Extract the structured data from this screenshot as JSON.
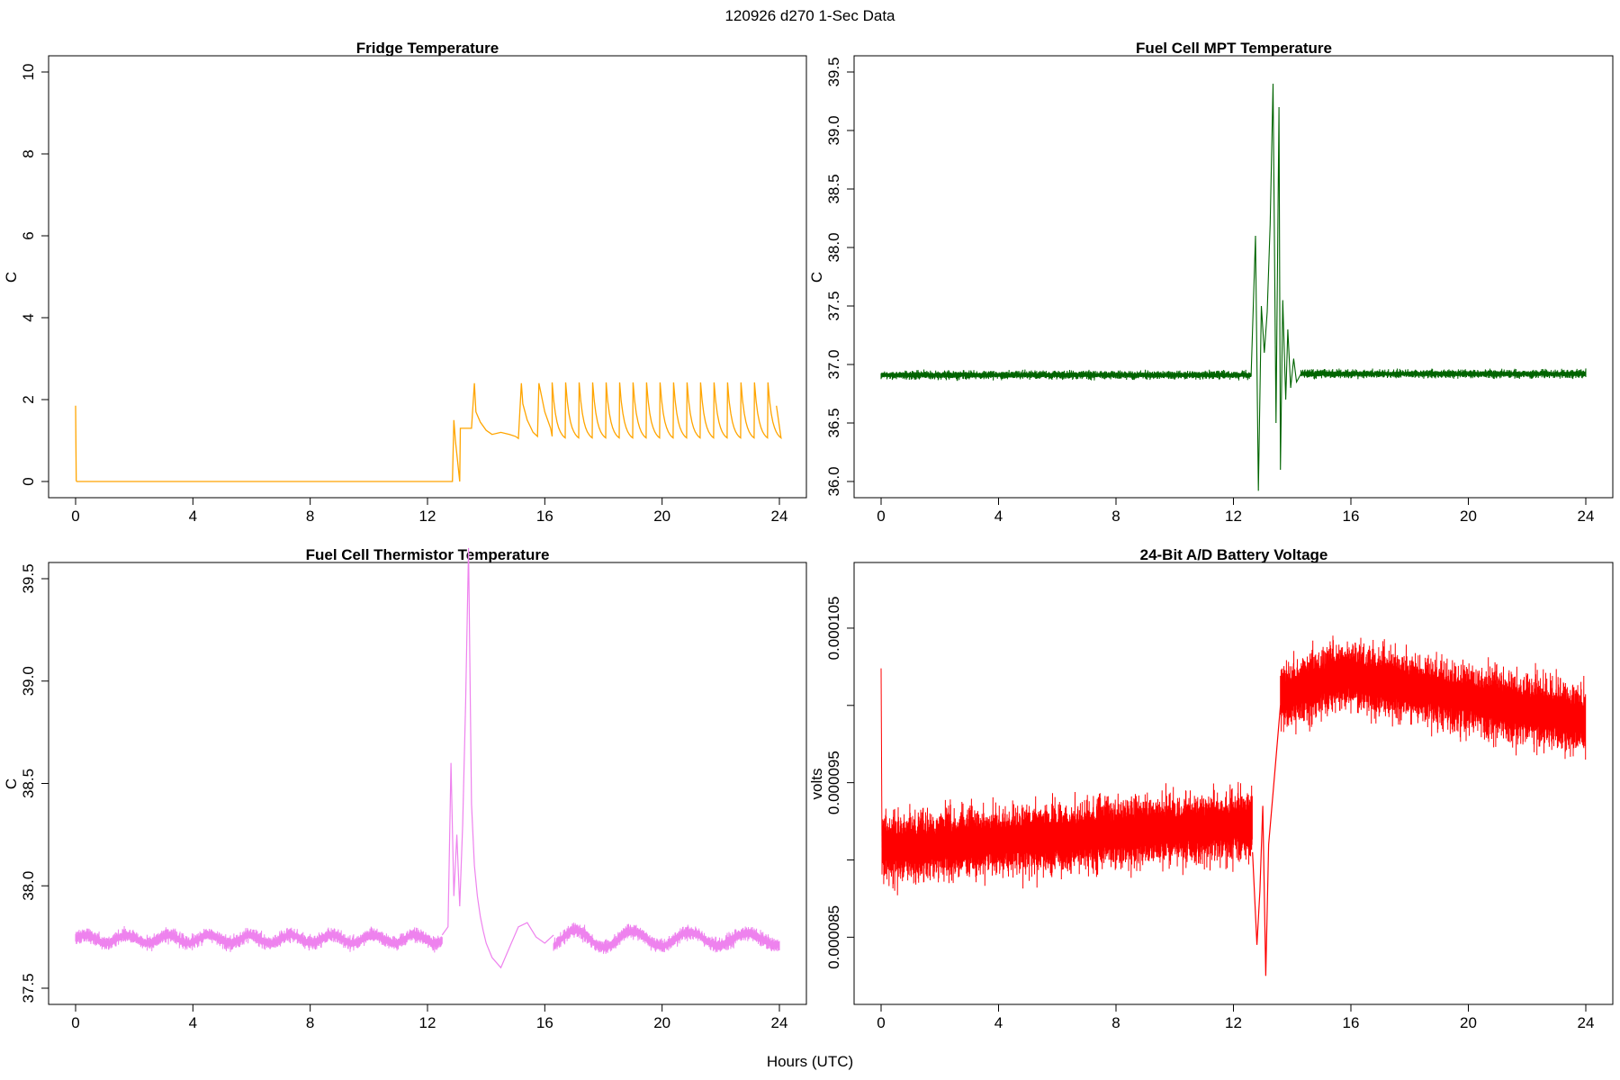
{
  "figure": {
    "title": "120926   d270   1-Sec Data",
    "xlabel": "Hours (UTC)"
  },
  "colors": {
    "fridge": "#ffa500",
    "mpt": "#006400",
    "thermistor": "#ee82ee",
    "battery": "#ff0000"
  },
  "chart_data": [
    {
      "type": "line",
      "title": "Fridge Temperature",
      "xlabel": "",
      "ylabel": "C",
      "xlim": [
        0,
        24
      ],
      "ylim": [
        0,
        10
      ],
      "xticks": [
        "0",
        "4",
        "8",
        "12",
        "16",
        "20",
        "24"
      ],
      "yticks": [
        "0",
        "2",
        "4",
        "6",
        "8",
        "10"
      ],
      "series": [
        {
          "name": "fridge",
          "color": "#ffa500",
          "x": [
            0,
            0.02,
            0.04,
            12.85,
            12.9,
            12.95,
            13.1,
            13.12,
            13.15,
            13.5,
            13.6,
            13.65,
            13.8,
            14.0,
            14.2,
            14.5,
            14.8,
            15.0,
            15.1,
            15.2,
            15.25,
            15.4,
            15.6,
            15.75,
            15.8,
            16.0,
            16.2,
            16.25
          ],
          "y": [
            1.85,
            0.02,
            0,
            0,
            1.5,
            1.0,
            0.0,
            1.3,
            1.3,
            1.3,
            2.4,
            1.7,
            1.45,
            1.25,
            1.15,
            1.2,
            1.15,
            1.1,
            1.05,
            2.4,
            1.9,
            1.5,
            1.2,
            1.1,
            2.4,
            1.7,
            1.3,
            1.1
          ]
        }
      ],
      "oscillation": {
        "x_start": 16.25,
        "x_end": 23.9,
        "period": 0.46,
        "min": 1.07,
        "max": 2.42,
        "final_value": 1.85
      }
    },
    {
      "type": "line",
      "title": "Fuel Cell MPT Temperature",
      "xlabel": "",
      "ylabel": "C",
      "xlim": [
        0,
        24
      ],
      "ylim": [
        36.0,
        39.5
      ],
      "xticks": [
        "0",
        "4",
        "8",
        "12",
        "16",
        "20",
        "24"
      ],
      "yticks": [
        "36.0",
        "36.5",
        "37.0",
        "37.5",
        "38.0",
        "38.5",
        "39.0",
        "39.5"
      ],
      "series": [
        {
          "name": "mpt",
          "color": "#006400",
          "baseline": 36.91,
          "noise": 0.04,
          "x": [
            12.6,
            12.75,
            12.85,
            12.95,
            13.05,
            13.15,
            13.25,
            13.35,
            13.45,
            13.55,
            13.6,
            13.68,
            13.78,
            13.85,
            13.95,
            14.05,
            14.15,
            14.3
          ],
          "y": [
            36.9,
            38.1,
            35.92,
            37.5,
            37.1,
            37.45,
            38.2,
            39.4,
            36.5,
            39.2,
            36.1,
            37.55,
            36.7,
            37.3,
            36.8,
            37.05,
            36.85,
            36.92
          ]
        }
      ]
    },
    {
      "type": "line",
      "title": "Fuel Cell Thermistor Temperature",
      "xlabel": "",
      "ylabel": "C",
      "xlim": [
        0,
        24
      ],
      "ylim": [
        37.5,
        39.5
      ],
      "xticks": [
        "0",
        "4",
        "8",
        "12",
        "16",
        "20",
        "24"
      ],
      "yticks": [
        "37.5",
        "38.0",
        "38.5",
        "39.0",
        "39.5"
      ],
      "series": [
        {
          "name": "thermistor",
          "color": "#ee82ee",
          "baseline": 37.74,
          "noise": 0.04,
          "x": [
            12.5,
            12.7,
            12.8,
            12.9,
            13.0,
            13.1,
            13.2,
            13.3,
            13.4,
            13.5,
            13.6,
            13.7,
            13.8,
            13.9,
            14.0,
            14.2,
            14.5,
            14.8,
            15.1,
            15.4,
            15.7,
            16.0,
            16.3
          ],
          "y": [
            37.76,
            37.8,
            38.6,
            37.95,
            38.25,
            37.9,
            38.3,
            38.9,
            39.65,
            38.4,
            38.1,
            37.95,
            37.85,
            37.78,
            37.72,
            37.65,
            37.6,
            37.7,
            37.8,
            37.82,
            37.75,
            37.72,
            37.76
          ]
        }
      ],
      "oscillation": {
        "x_start": 14.0,
        "x_end": 24,
        "period": 1.95,
        "amplitude": 0.05,
        "early_period": 1.4,
        "early_amplitude": 0.02
      }
    },
    {
      "type": "line",
      "title": "24-Bit A/D Battery Voltage",
      "xlabel": "",
      "ylabel": "volts",
      "xlim": [
        0,
        24
      ],
      "ylim": [
        8.17e-05,
        0.0001082
      ],
      "xticks": [
        "0",
        "4",
        "8",
        "12",
        "16",
        "20",
        "24"
      ],
      "yticks": [
        "0.000085",
        "0.000095",
        "0.000105"
      ],
      "ytick_values": [
        8.5e-05,
        9e-05,
        9.5e-05,
        0.0001,
        0.000105
      ],
      "series": [
        {
          "name": "battery",
          "color": "#ff0000",
          "start_spike": 0.0001024,
          "segment1": {
            "x_start": 0,
            "x_end": 12.65,
            "center_start": 9.07e-05,
            "center_end": 9.23e-05,
            "noise": 2.5e-06
          },
          "dip_x": [
            12.65,
            12.8,
            12.9,
            13.0,
            13.1,
            13.2,
            13.4,
            13.6
          ],
          "dip_y": [
            9.05e-05,
            8.45e-05,
            8.8e-05,
            9.35e-05,
            8.25e-05,
            9.1e-05,
            9.55e-05,
            0.0001
          ],
          "segment2": {
            "x_start": 13.6,
            "x_end": 24,
            "center_start": 0.0001005,
            "center_peak": 0.000102,
            "center_end": 9.9e-05,
            "noise": 2.5e-06
          }
        }
      ]
    }
  ]
}
